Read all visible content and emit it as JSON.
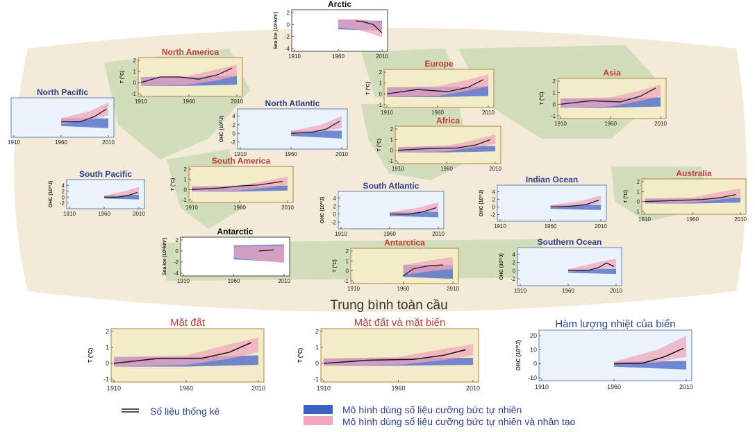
{
  "colors": {
    "land_bg": "#f3ecc8",
    "ocean_bg": "#eaf3fb",
    "land_title": "#c23b3b",
    "ocean_title": "#2b3f8f",
    "natural_band": "#5b73c9",
    "anthro_band": "#f2a7bd",
    "observations": "#1b1b1b",
    "map_land": "#c9d9b4",
    "map_ocean": "#f3ead8"
  },
  "global_title": "Trung bình toàn cầu",
  "legend": {
    "observations": "Số liệu thống kê",
    "natural": "Mô hình dùng số liệu cưỡng bức tự nhiên",
    "natural_anthro": "Mô hình dùng số liệu cưỡng bức tự nhiên và nhân tạo"
  },
  "chart_data": [
    {
      "type": "line",
      "title": "Arctic",
      "ylabel": "Sea ice (10⁶km²)",
      "x_ticks": [
        1910,
        1960,
        2010
      ],
      "y_ticks": [
        2,
        0,
        -2,
        -4
      ],
      "ylim": [
        -4,
        2
      ],
      "bg": "white",
      "tcolor": "black",
      "natural": {
        "x": [
          1960,
          2010
        ],
        "lo": [
          -0.8,
          -1.0
        ],
        "hi": [
          0.8,
          0.6
        ]
      },
      "natural_anthro": {
        "x": [
          1960,
          1980,
          2000,
          2010
        ],
        "lo": [
          -0.5,
          -0.8,
          -1.6,
          -2.2
        ],
        "hi": [
          0.9,
          0.9,
          0.6,
          0.4
        ]
      },
      "observations": {
        "x": [
          1980,
          1990,
          2000,
          2010
        ],
        "y": [
          0.6,
          0.4,
          0.0,
          -1.4
        ]
      }
    },
    {
      "type": "line",
      "title": "North America",
      "ylabel": "T (°C)",
      "x_ticks": [
        1910,
        1960,
        2010
      ],
      "y_ticks": [
        2,
        1,
        0,
        -1
      ],
      "ylim": [
        -1,
        2
      ],
      "bg": "land",
      "tcolor": "land",
      "natural": {
        "x": [
          1910,
          1960,
          2010
        ],
        "lo": [
          -0.3,
          -0.3,
          -0.2
        ],
        "hi": [
          0.5,
          0.5,
          0.6
        ]
      },
      "natural_anthro": {
        "x": [
          1910,
          1960,
          1990,
          2010
        ],
        "lo": [
          -0.3,
          -0.2,
          0.2,
          0.6
        ],
        "hi": [
          0.5,
          0.6,
          1.2,
          1.6
        ]
      },
      "observations": {
        "x": [
          1910,
          1930,
          1950,
          1970,
          1990,
          2005
        ],
        "y": [
          0.0,
          0.5,
          0.5,
          0.3,
          0.7,
          1.3
        ]
      }
    },
    {
      "type": "line",
      "title": "Europe",
      "ylabel": "T (°C)",
      "x_ticks": [
        1910,
        1960,
        2010
      ],
      "y_ticks": [
        2,
        1,
        0,
        -1
      ],
      "ylim": [
        -1,
        2
      ],
      "bg": "land",
      "tcolor": "land",
      "natural": {
        "x": [
          1910,
          1960,
          2010
        ],
        "lo": [
          -0.3,
          -0.3,
          -0.2
        ],
        "hi": [
          0.6,
          0.6,
          0.7
        ]
      },
      "natural_anthro": {
        "x": [
          1910,
          1960,
          1990,
          2010
        ],
        "lo": [
          -0.3,
          -0.2,
          0.3,
          0.7
        ],
        "hi": [
          0.6,
          0.7,
          1.3,
          1.8
        ]
      },
      "observations": {
        "x": [
          1910,
          1940,
          1970,
          1990,
          2005
        ],
        "y": [
          0.0,
          0.4,
          0.2,
          0.6,
          1.3
        ]
      }
    },
    {
      "type": "line",
      "title": "Asia",
      "ylabel": "T (°C)",
      "x_ticks": [
        1910,
        1960,
        2010
      ],
      "y_ticks": [
        2,
        1,
        0,
        -1
      ],
      "ylim": [
        -1,
        2
      ],
      "bg": "land",
      "tcolor": "land",
      "natural": {
        "x": [
          1910,
          1960,
          2010
        ],
        "lo": [
          -0.3,
          -0.3,
          -0.2
        ],
        "hi": [
          0.5,
          0.5,
          0.6
        ]
      },
      "natural_anthro": {
        "x": [
          1910,
          1960,
          1990,
          2010
        ],
        "lo": [
          -0.3,
          -0.2,
          0.3,
          0.7
        ],
        "hi": [
          0.5,
          0.6,
          1.2,
          1.7
        ]
      },
      "observations": {
        "x": [
          1910,
          1940,
          1970,
          1990,
          2005
        ],
        "y": [
          0.0,
          0.3,
          0.2,
          0.7,
          1.4
        ]
      }
    },
    {
      "type": "line",
      "title": "North Pacific",
      "ylabel": "",
      "x_ticks": [
        1910,
        1960,
        2010
      ],
      "y_ticks": [],
      "ylim": [
        -3,
        5
      ],
      "bg": "ocean",
      "tcolor": "ocean",
      "natural": {
        "x": [
          1960,
          2010
        ],
        "lo": [
          -1.0,
          -1.5
        ],
        "hi": [
          0.8,
          0.8
        ]
      },
      "natural_anthro": {
        "x": [
          1960,
          1990,
          2010
        ],
        "lo": [
          -0.6,
          0.5,
          1.5
        ],
        "hi": [
          0.8,
          2.5,
          4.5
        ]
      },
      "observations": {
        "x": [
          1960,
          1980,
          1995,
          2008
        ],
        "y": [
          0.0,
          0.0,
          1.2,
          3.0
        ]
      }
    },
    {
      "type": "line",
      "title": "North Atlantic",
      "ylabel": "OHC (10²²J)",
      "x_ticks": [
        1910,
        1960,
        2010
      ],
      "y_ticks": [
        4,
        2,
        0,
        -2
      ],
      "ylim": [
        -3,
        5
      ],
      "bg": "ocean",
      "tcolor": "ocean",
      "natural": {
        "x": [
          1960,
          2010
        ],
        "lo": [
          -0.6,
          -1.2
        ],
        "hi": [
          0.6,
          0.6
        ]
      },
      "natural_anthro": {
        "x": [
          1960,
          1990,
          2010
        ],
        "lo": [
          -0.3,
          0.4,
          1.2
        ],
        "hi": [
          0.5,
          2.0,
          4.0
        ]
      },
      "observations": {
        "x": [
          1960,
          1980,
          1995,
          2008
        ],
        "y": [
          0.0,
          0.2,
          1.0,
          2.8
        ]
      }
    },
    {
      "type": "line",
      "title": "Africa",
      "ylabel": "T (°C)",
      "x_ticks": [
        1910,
        1960,
        2010
      ],
      "y_ticks": [
        2,
        1,
        0,
        -1
      ],
      "ylim": [
        -1,
        2
      ],
      "bg": "land",
      "tcolor": "land",
      "natural": {
        "x": [
          1910,
          1960,
          2010
        ],
        "lo": [
          -0.2,
          -0.2,
          -0.1
        ],
        "hi": [
          0.3,
          0.4,
          0.4
        ]
      },
      "natural_anthro": {
        "x": [
          1910,
          1960,
          1990,
          2010
        ],
        "lo": [
          -0.2,
          -0.1,
          0.3,
          0.6
        ],
        "hi": [
          0.3,
          0.4,
          1.0,
          1.5
        ]
      },
      "observations": {
        "x": [
          1910,
          1940,
          1970,
          1990,
          2005
        ],
        "y": [
          0.0,
          0.15,
          0.2,
          0.5,
          1.0
        ]
      }
    },
    {
      "type": "line",
      "title": "South Pacific",
      "ylabel": "OHC (10²²J)",
      "x_ticks": [
        1910,
        1960,
        2010
      ],
      "y_ticks": [
        4,
        2,
        0,
        -2
      ],
      "ylim": [
        -3,
        5
      ],
      "bg": "ocean",
      "tcolor": "ocean",
      "natural": {
        "x": [
          1960,
          2010
        ],
        "lo": [
          -0.5,
          -0.8
        ],
        "hi": [
          0.5,
          0.8
        ]
      },
      "natural_anthro": {
        "x": [
          1960,
          1990,
          2010
        ],
        "lo": [
          -0.3,
          0.3,
          1.0
        ],
        "hi": [
          0.5,
          2.0,
          3.5
        ]
      },
      "observations": {
        "x": [
          1960,
          1980,
          1995,
          2008
        ],
        "y": [
          0.0,
          0.0,
          0.6,
          1.6
        ]
      }
    },
    {
      "type": "line",
      "title": "South America",
      "ylabel": "T (°C)",
      "x_ticks": [
        1910,
        1960,
        2010
      ],
      "y_ticks": [
        2,
        1,
        0,
        -1
      ],
      "ylim": [
        -1,
        2
      ],
      "bg": "land",
      "tcolor": "land",
      "natural": {
        "x": [
          1910,
          1960,
          2010
        ],
        "lo": [
          -0.2,
          -0.2,
          -0.1
        ],
        "hi": [
          0.3,
          0.3,
          0.4
        ]
      },
      "natural_anthro": {
        "x": [
          1910,
          1960,
          1990,
          2010
        ],
        "lo": [
          -0.2,
          -0.1,
          0.2,
          0.5
        ],
        "hi": [
          0.3,
          0.4,
          0.9,
          1.3
        ]
      },
      "observations": {
        "x": [
          1910,
          1940,
          1960,
          1980,
          2005
        ],
        "y": [
          0.0,
          0.15,
          0.35,
          0.45,
          0.8
        ]
      }
    },
    {
      "type": "line",
      "title": "South Atlantic",
      "ylabel": "OHC (10²²J)",
      "x_ticks": [
        1910,
        1960,
        2010
      ],
      "y_ticks": [
        4,
        2,
        0,
        -2
      ],
      "ylim": [
        -3,
        5
      ],
      "bg": "ocean",
      "tcolor": "ocean",
      "natural": {
        "x": [
          1960,
          2010
        ],
        "lo": [
          -0.5,
          -0.8
        ],
        "hi": [
          0.5,
          0.6
        ]
      },
      "natural_anthro": {
        "x": [
          1960,
          1990,
          2010
        ],
        "lo": [
          -0.3,
          0.3,
          0.9
        ],
        "hi": [
          0.5,
          1.6,
          3.0
        ]
      },
      "observations": {
        "x": [
          1960,
          1980,
          1995,
          2008
        ],
        "y": [
          0.0,
          0.0,
          0.6,
          1.6
        ]
      }
    },
    {
      "type": "line",
      "title": "Indian Ocean",
      "ylabel": "OHC (10²²J)",
      "x_ticks": [
        1910,
        1960,
        2010
      ],
      "y_ticks": [
        4,
        2,
        0,
        -2
      ],
      "ylim": [
        -3,
        5
      ],
      "bg": "ocean",
      "tcolor": "ocean",
      "natural": {
        "x": [
          1960,
          2010
        ],
        "lo": [
          -0.5,
          -0.8
        ],
        "hi": [
          0.5,
          0.6
        ]
      },
      "natural_anthro": {
        "x": [
          1960,
          1990,
          2010
        ],
        "lo": [
          -0.3,
          0.3,
          0.9
        ],
        "hi": [
          0.5,
          1.6,
          3.0
        ]
      },
      "observations": {
        "x": [
          1960,
          1980,
          1995,
          2008
        ],
        "y": [
          0.0,
          0.2,
          0.6,
          1.8
        ]
      }
    },
    {
      "type": "line",
      "title": "Australia",
      "ylabel": "T (°C)",
      "x_ticks": [
        1910,
        1960,
        2010
      ],
      "y_ticks": [
        2,
        1,
        0,
        -1
      ],
      "ylim": [
        -1,
        2
      ],
      "bg": "land",
      "tcolor": "land",
      "natural": {
        "x": [
          1910,
          1960,
          2010
        ],
        "lo": [
          -0.2,
          -0.2,
          -0.1
        ],
        "hi": [
          0.3,
          0.3,
          0.4
        ]
      },
      "natural_anthro": {
        "x": [
          1910,
          1960,
          1990,
          2010
        ],
        "lo": [
          -0.2,
          -0.1,
          0.2,
          0.5
        ],
        "hi": [
          0.3,
          0.4,
          1.0,
          1.3
        ]
      },
      "observations": {
        "x": [
          1910,
          1940,
          1970,
          1990,
          2005
        ],
        "y": [
          0.0,
          0.1,
          0.2,
          0.4,
          0.7
        ]
      }
    },
    {
      "type": "line",
      "title": "Antarctic",
      "ylabel": "Sea ice (10⁶km²)",
      "x_ticks": [
        1910,
        1960,
        2010
      ],
      "y_ticks": [
        2,
        0,
        -2,
        -4
      ],
      "ylim": [
        -4,
        2
      ],
      "bg": "white",
      "tcolor": "black",
      "natural": {
        "x": [
          1960,
          2010
        ],
        "lo": [
          -1.5,
          -2.0
        ],
        "hi": [
          1.0,
          1.2
        ]
      },
      "natural_anthro": {
        "x": [
          1960,
          2010
        ],
        "lo": [
          -1.2,
          -2.2
        ],
        "hi": [
          0.8,
          1.0
        ]
      },
      "observations": {
        "x": [
          1985,
          2000
        ],
        "y": [
          0.0,
          0.2
        ]
      }
    },
    {
      "type": "line",
      "title": "Antarctica",
      "ylabel": "T (°C)",
      "x_ticks": [
        1910,
        1960,
        2010
      ],
      "y_ticks": [
        2,
        1,
        0,
        -1
      ],
      "ylim": [
        -1,
        2
      ],
      "bg": "land",
      "tcolor": "land",
      "natural": {
        "x": [
          1960,
          2010
        ],
        "lo": [
          -0.6,
          -0.8
        ],
        "hi": [
          0.6,
          0.6
        ]
      },
      "natural_anthro": {
        "x": [
          1960,
          1990,
          2010
        ],
        "lo": [
          -0.4,
          0.0,
          0.2
        ],
        "hi": [
          0.6,
          1.1,
          1.4
        ]
      },
      "observations": {
        "x": [
          1960,
          1970,
          1985,
          2000
        ],
        "y": [
          -0.5,
          0.2,
          0.5,
          0.6
        ]
      }
    },
    {
      "type": "line",
      "title": "Southern Ocean",
      "ylabel": "OHC (10²²J)",
      "x_ticks": [
        1910,
        1960,
        2010
      ],
      "y_ticks": [
        4,
        2,
        0,
        -2
      ],
      "ylim": [
        -3,
        5
      ],
      "bg": "ocean",
      "tcolor": "ocean",
      "natural": {
        "x": [
          1960,
          2010
        ],
        "lo": [
          -0.5,
          -0.8
        ],
        "hi": [
          0.4,
          0.5
        ]
      },
      "natural_anthro": {
        "x": [
          1960,
          1990,
          2010
        ],
        "lo": [
          -0.3,
          0.3,
          0.8
        ],
        "hi": [
          0.4,
          2.0,
          3.0
        ]
      },
      "observations": {
        "x": [
          1960,
          1980,
          1992,
          2000,
          2008
        ],
        "y": [
          0.0,
          0.0,
          0.8,
          1.9,
          1.0
        ]
      }
    },
    {
      "type": "line",
      "title": "Mặt đất",
      "ylabel": "T (°C)",
      "x_ticks": [
        1910,
        1960,
        2010
      ],
      "y_ticks": [
        2,
        1,
        0,
        -1
      ],
      "ylim": [
        -1,
        2
      ],
      "bg": "land",
      "tcolor": "land",
      "natural": {
        "x": [
          1910,
          1960,
          2010
        ],
        "lo": [
          -0.2,
          -0.2,
          -0.1
        ],
        "hi": [
          0.4,
          0.4,
          0.5
        ]
      },
      "natural_anthro": {
        "x": [
          1910,
          1960,
          1990,
          2010
        ],
        "lo": [
          -0.2,
          -0.1,
          0.3,
          0.7
        ],
        "hi": [
          0.4,
          0.5,
          1.2,
          1.6
        ]
      },
      "observations": {
        "x": [
          1910,
          1940,
          1970,
          1990,
          2005
        ],
        "y": [
          0.0,
          0.3,
          0.3,
          0.7,
          1.3
        ]
      }
    },
    {
      "type": "line",
      "title": "Mặt đất và mặt biển",
      "ylabel": "T (°C)",
      "x_ticks": [
        1910,
        1960,
        2010
      ],
      "y_ticks": [
        2,
        1,
        0,
        -1
      ],
      "ylim": [
        -1,
        2
      ],
      "bg": "land",
      "tcolor": "land",
      "natural": {
        "x": [
          1910,
          1960,
          2010
        ],
        "lo": [
          -0.15,
          -0.15,
          -0.1
        ],
        "hi": [
          0.3,
          0.35,
          0.35
        ]
      },
      "natural_anthro": {
        "x": [
          1910,
          1960,
          1990,
          2010
        ],
        "lo": [
          -0.15,
          -0.1,
          0.2,
          0.5
        ],
        "hi": [
          0.3,
          0.4,
          0.9,
          1.2
        ]
      },
      "observations": {
        "x": [
          1910,
          1940,
          1970,
          1990,
          2005
        ],
        "y": [
          0.0,
          0.2,
          0.25,
          0.5,
          0.85
        ]
      }
    },
    {
      "type": "line",
      "title": "Hàm lượng nhiệt của biển",
      "ylabel": "OHC (10²²J)",
      "x_ticks": [
        1910,
        1960,
        2010
      ],
      "y_ticks": [
        20,
        10,
        0,
        -10
      ],
      "ylim": [
        -10,
        22
      ],
      "bg": "ocean",
      "tcolor": "ocean",
      "natural": {
        "x": [
          1960,
          2010
        ],
        "lo": [
          -2.0,
          -4.0
        ],
        "hi": [
          1.5,
          2.0
        ]
      },
      "natural_anthro": {
        "x": [
          1960,
          1990,
          2010
        ],
        "lo": [
          -1.0,
          1.0,
          5.0
        ],
        "hi": [
          1.5,
          10.0,
          20.0
        ]
      },
      "observations": {
        "x": [
          1960,
          1980,
          1995,
          2008
        ],
        "y": [
          0.0,
          0.5,
          5.0,
          11.0
        ]
      }
    }
  ]
}
